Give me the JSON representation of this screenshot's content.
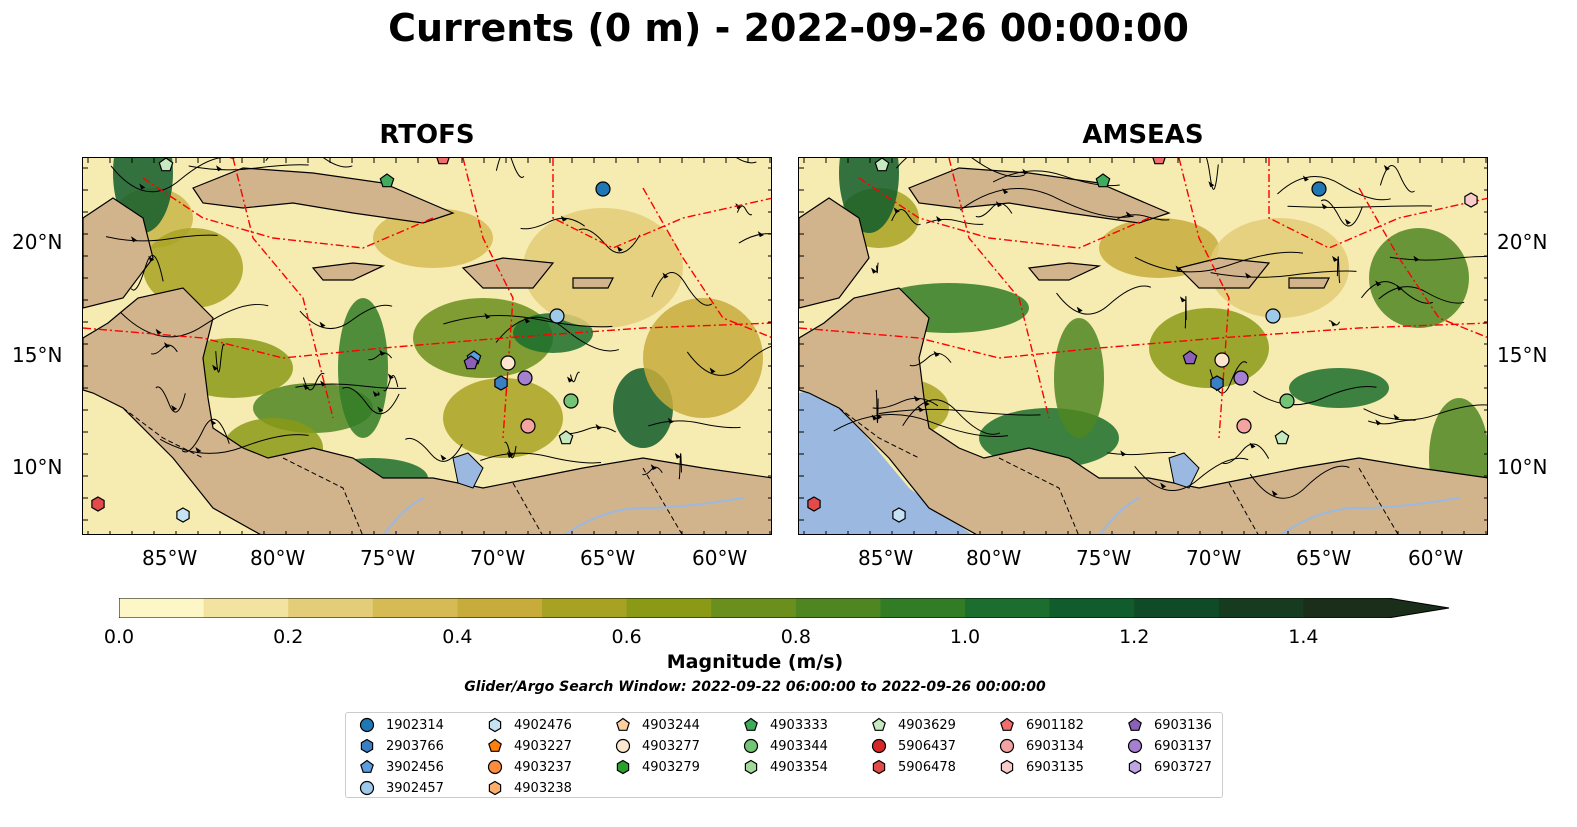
{
  "title": "Currents (0 m) - 2022-09-26 00:00:00",
  "panels": [
    {
      "title": "RTOFS"
    },
    {
      "title": "AMSEAS"
    }
  ],
  "lon_ticks": [
    "85°W",
    "80°W",
    "75°W",
    "70°W",
    "65°W",
    "60°W"
  ],
  "lat_ticks": [
    "20°N",
    "15°N",
    "10°N"
  ],
  "colorbar": {
    "label": "Magnitude (m/s)",
    "ticks": [
      "0.0",
      "0.2",
      "0.4",
      "0.6",
      "0.8",
      "1.0",
      "1.2",
      "1.4"
    ],
    "colors": [
      "#fdf6c6",
      "#f2e3a0",
      "#e3cd78",
      "#d6bb55",
      "#c7ac3c",
      "#a8a223",
      "#8a9a17",
      "#6a8f1c",
      "#4f8622",
      "#337c26",
      "#1b6e2d",
      "#115c2c",
      "#0f4b26",
      "#163b1f",
      "#1a2e19"
    ],
    "extend": "max"
  },
  "search_window": "Glider/Argo Search Window: 2022-09-22 06:00:00 to 2022-09-26 00:00:00",
  "legend": [
    {
      "label": "1902314",
      "color": "#1f77b4",
      "shape": "circle"
    },
    {
      "label": "2903766",
      "color": "#3a7fc4",
      "shape": "hexagon"
    },
    {
      "label": "3902456",
      "color": "#5a9de0",
      "shape": "pentagon"
    },
    {
      "label": "3902457",
      "color": "#9ecae9",
      "shape": "circle"
    },
    {
      "label": "4902476",
      "color": "#c6e2f5",
      "shape": "hexagon"
    },
    {
      "label": "4903227",
      "color": "#ff7f0e",
      "shape": "pentagon"
    },
    {
      "label": "4903237",
      "color": "#fd8d3c",
      "shape": "circle"
    },
    {
      "label": "4903238",
      "color": "#fdae6b",
      "shape": "hexagon"
    },
    {
      "label": "4903244",
      "color": "#fdd0a2",
      "shape": "pentagon"
    },
    {
      "label": "4903277",
      "color": "#fee6ce",
      "shape": "circle"
    },
    {
      "label": "4903279",
      "color": "#2ca02c",
      "shape": "hexagon"
    },
    {
      "label": "4903333",
      "color": "#41ab5d",
      "shape": "pentagon"
    },
    {
      "label": "4903344",
      "color": "#74c476",
      "shape": "circle"
    },
    {
      "label": "4903354",
      "color": "#a1d99b",
      "shape": "hexagon"
    },
    {
      "label": "4903629",
      "color": "#c7e9c0",
      "shape": "pentagon"
    },
    {
      "label": "5906437",
      "color": "#d62728",
      "shape": "circle"
    },
    {
      "label": "5906478",
      "color": "#e34a4a",
      "shape": "hexagon"
    },
    {
      "label": "6901182",
      "color": "#ef6f6f",
      "shape": "pentagon"
    },
    {
      "label": "6903134",
      "color": "#f4a3a3",
      "shape": "circle"
    },
    {
      "label": "6903135",
      "color": "#f9cccc",
      "shape": "hexagon"
    },
    {
      "label": "6903136",
      "color": "#8c5fb8",
      "shape": "pentagon"
    },
    {
      "label": "6903137",
      "color": "#a57fd0",
      "shape": "circle"
    },
    {
      "label": "6903727",
      "color": "#c0a5e3",
      "shape": "hexagon"
    }
  ],
  "colors": {
    "land": "#d2b48c",
    "ocean_low": "#f7eeb5",
    "pacific": "#9bb8e0",
    "eez": "#ff0000"
  }
}
